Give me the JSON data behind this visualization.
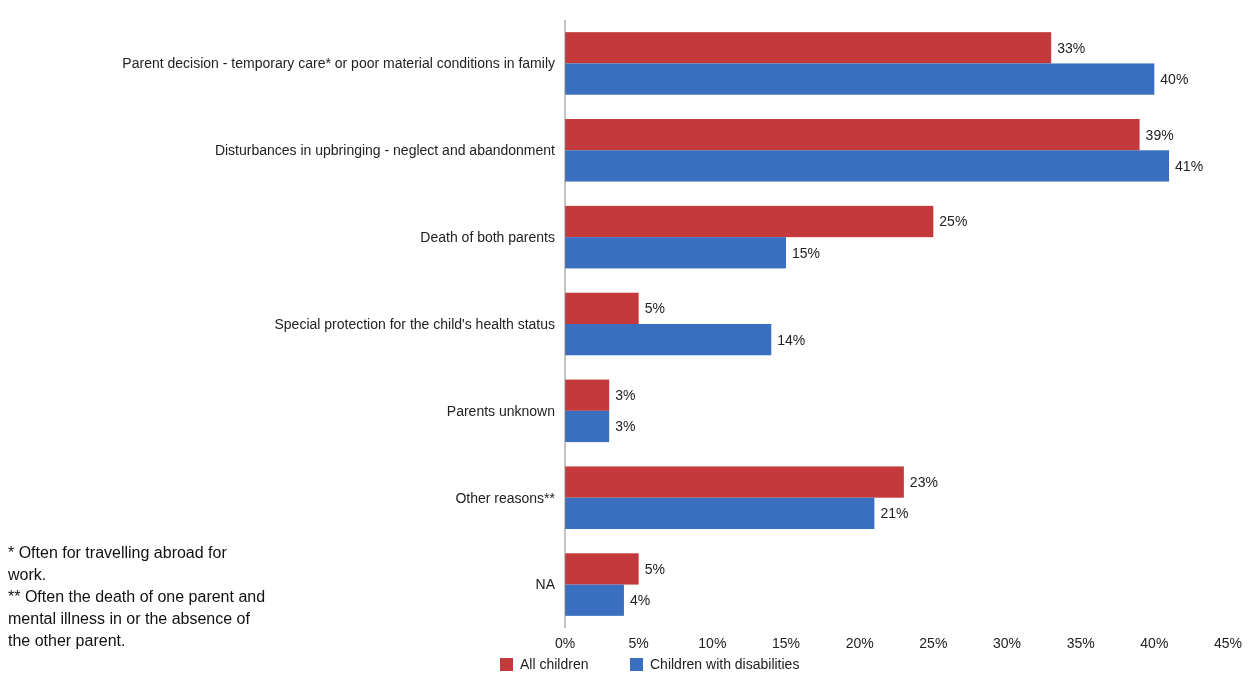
{
  "chart_data": {
    "type": "bar",
    "orientation": "horizontal",
    "categories": [
      "Parent decision - temporary care* or poor material conditions in family",
      "Disturbances in upbringing - neglect and abandonment",
      "Death of both parents",
      "Special protection for the child's health status",
      "Parents unknown",
      "Other reasons**",
      "NA"
    ],
    "series": [
      {
        "name": "All children",
        "color": "#c43a3c",
        "values": [
          33,
          39,
          25,
          5,
          3,
          23,
          5
        ],
        "value_labels": [
          "33%",
          "39%",
          "25%",
          "5%",
          "3%",
          "23%",
          "5%"
        ]
      },
      {
        "name": "Children with disabilities",
        "color": "#3a6fbf",
        "values": [
          40,
          41,
          15,
          14,
          3,
          21,
          4
        ],
        "value_labels": [
          "40%",
          "41%",
          "15%",
          "14%",
          "3%",
          "21%",
          "4%"
        ]
      }
    ],
    "xlim": [
      0,
      45
    ],
    "xticks": [
      {
        "value": 0,
        "label": "0%"
      },
      {
        "value": 5,
        "label": "5%"
      },
      {
        "value": 10,
        "label": "10%"
      },
      {
        "value": 15,
        "label": "15%"
      },
      {
        "value": 20,
        "label": "20%"
      },
      {
        "value": 25,
        "label": "25%"
      },
      {
        "value": 30,
        "label": "30%"
      },
      {
        "value": 35,
        "label": "35%"
      },
      {
        "value": 40,
        "label": "40%"
      },
      {
        "value": 45,
        "label": "45%"
      }
    ],
    "grid": false,
    "legend": "bottom",
    "annotations": [
      "* Often for travelling abroad for work.",
      "** Often the death of one parent and mental illness in or the absence of the other parent."
    ]
  }
}
